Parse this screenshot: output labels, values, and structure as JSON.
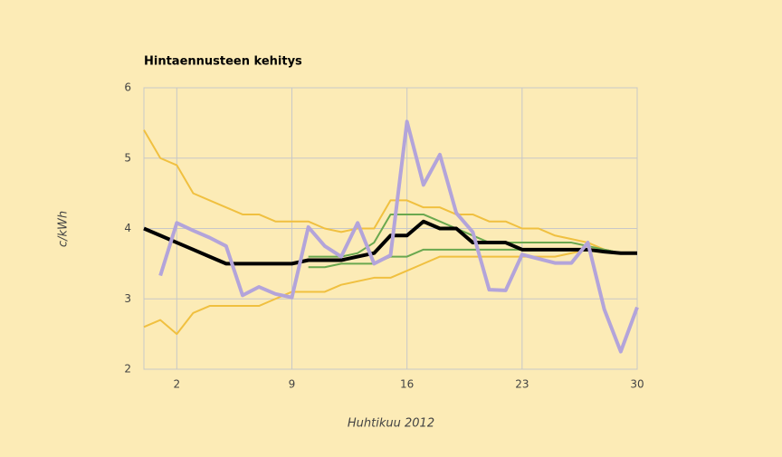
{
  "chart_data": {
    "type": "line",
    "title": "Hintaennusteen kehitys",
    "x_label": "Huhtikuu 2012",
    "y_label": "c/kWh",
    "x": [
      0,
      1,
      2,
      3,
      4,
      5,
      6,
      7,
      8,
      9,
      10,
      11,
      12,
      13,
      14,
      15,
      16,
      17,
      18,
      19,
      20,
      21,
      22,
      23,
      24,
      25,
      26,
      27,
      28,
      29,
      30
    ],
    "xlim": [
      0,
      30
    ],
    "xticks": [
      2,
      9,
      16,
      23,
      30
    ],
    "ylim": [
      2,
      6
    ],
    "yticks": [
      2,
      3,
      4,
      5,
      6
    ],
    "grid": true,
    "series": [
      {
        "color": "#f0c040",
        "width": 2,
        "values": [
          5.4,
          5.0,
          4.9,
          4.5,
          4.4,
          4.3,
          4.2,
          4.2,
          4.1,
          4.1,
          4.1,
          4.0,
          3.95,
          4.0,
          4.0,
          4.4,
          4.4,
          4.3,
          4.3,
          4.2,
          4.2,
          4.1,
          4.1,
          4.0,
          4.0,
          3.9,
          3.85,
          3.8,
          3.7,
          3.65,
          3.65
        ]
      },
      {
        "color": "#f0c040",
        "width": 2,
        "values": [
          2.6,
          2.7,
          2.5,
          2.8,
          2.9,
          2.9,
          2.9,
          2.9,
          3.0,
          3.1,
          3.1,
          3.1,
          3.2,
          3.25,
          3.3,
          3.3,
          3.4,
          3.5,
          3.6,
          3.6,
          3.6,
          3.6,
          3.6,
          3.6,
          3.6,
          3.6,
          3.65,
          3.7,
          3.7,
          3.65,
          3.65
        ]
      },
      {
        "color": "#6aa84f",
        "width": 2,
        "values": [
          null,
          null,
          null,
          null,
          null,
          null,
          null,
          null,
          null,
          null,
          3.6,
          3.6,
          3.6,
          3.65,
          3.8,
          4.2,
          4.2,
          4.2,
          4.1,
          4.0,
          3.9,
          3.8,
          3.8,
          3.8,
          3.8,
          3.8,
          3.8,
          3.75,
          3.7,
          3.65,
          3.65
        ]
      },
      {
        "color": "#6aa84f",
        "width": 2,
        "values": [
          null,
          null,
          null,
          null,
          null,
          null,
          null,
          null,
          null,
          null,
          3.45,
          3.45,
          3.5,
          3.5,
          3.5,
          3.6,
          3.6,
          3.7,
          3.7,
          3.7,
          3.7,
          3.7,
          3.7,
          3.7,
          3.7,
          3.7,
          3.7,
          3.7,
          3.7,
          3.65,
          3.65
        ]
      },
      {
        "color": "#000000",
        "width": 4,
        "values": [
          4.0,
          3.9,
          3.8,
          3.7,
          3.6,
          3.5,
          3.5,
          3.5,
          3.5,
          3.5,
          3.55,
          3.55,
          3.55,
          3.6,
          3.65,
          3.9,
          3.9,
          4.1,
          4.0,
          4.0,
          3.8,
          3.8,
          3.8,
          3.7,
          3.7,
          3.7,
          3.7,
          3.7,
          3.67,
          3.65,
          3.65
        ]
      },
      {
        "color": "#b3a4da",
        "width": 4,
        "values": [
          null,
          3.33,
          4.08,
          3.97,
          3.87,
          3.75,
          3.05,
          3.17,
          3.07,
          3.02,
          4.02,
          3.75,
          3.6,
          4.08,
          3.5,
          3.62,
          5.52,
          4.62,
          5.05,
          4.22,
          3.95,
          3.13,
          3.12,
          3.63,
          3.57,
          3.51,
          3.51,
          3.8,
          2.85,
          2.25,
          2.88
        ]
      }
    ]
  }
}
